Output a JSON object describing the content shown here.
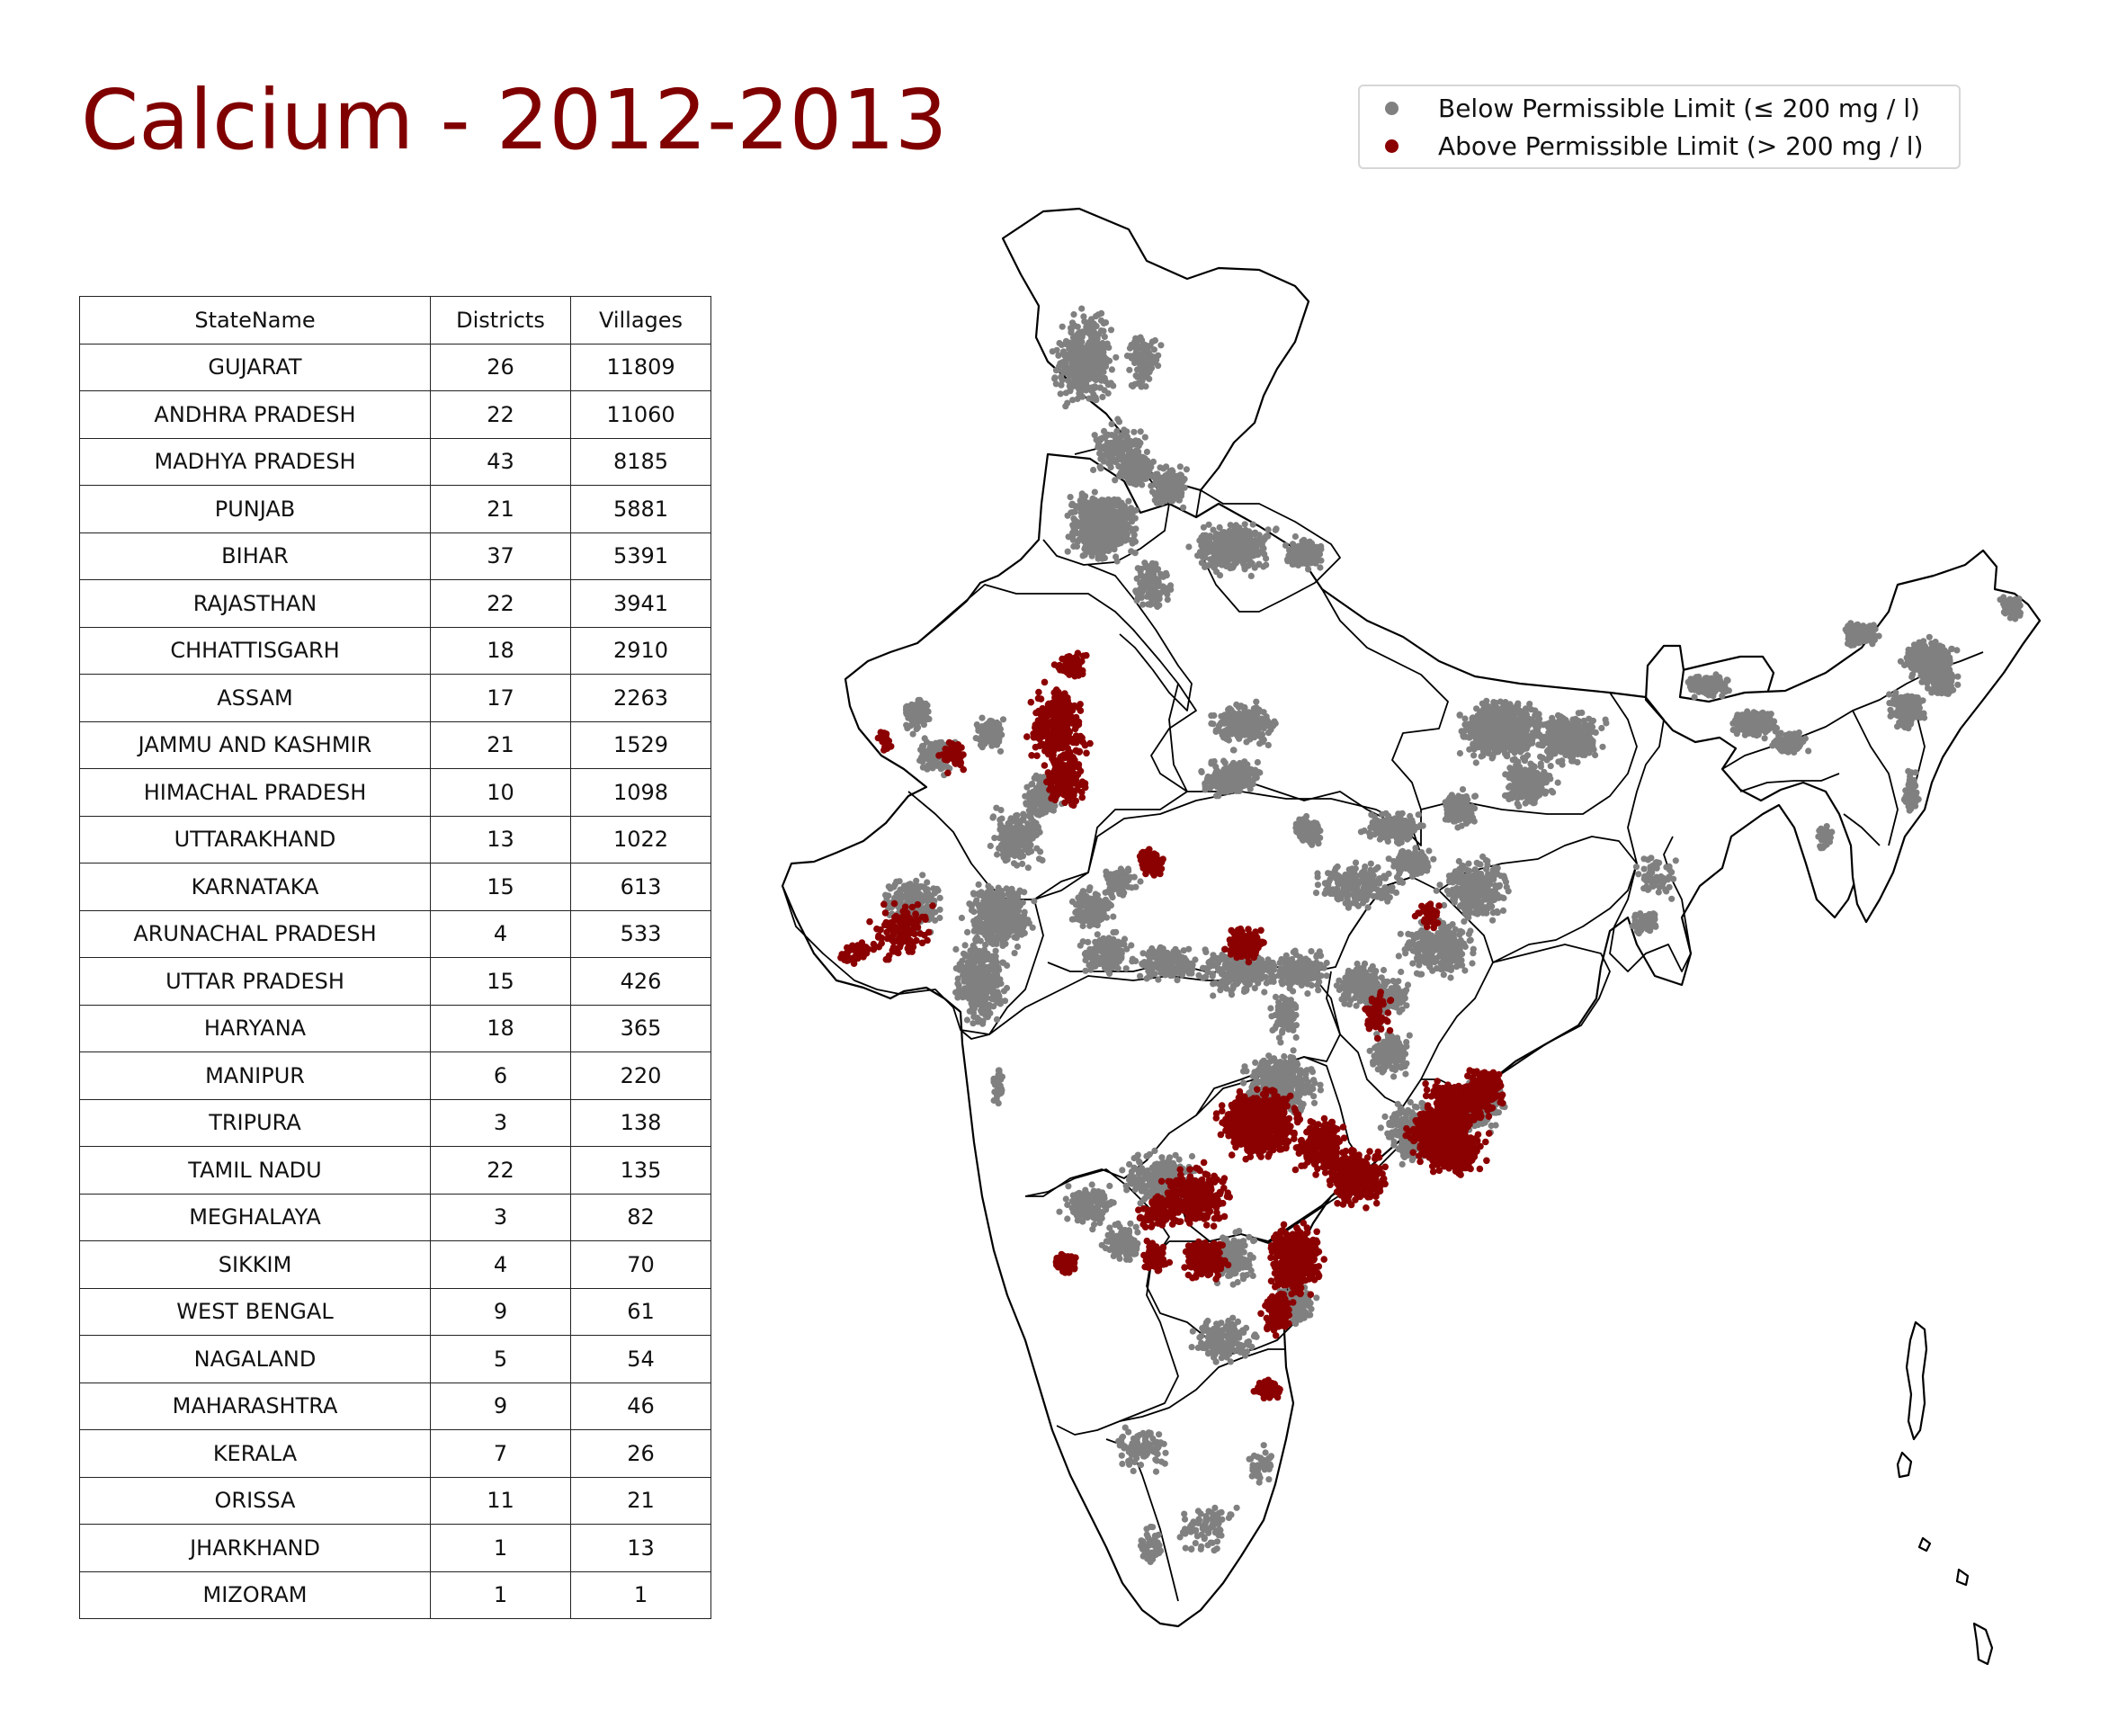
{
  "title": "Calcium - 2012-2013",
  "legend": {
    "below": {
      "label": "Below Permissible Limit (≤ 200 mg / l)",
      "color": "#808080"
    },
    "above": {
      "label": "Above Permissible Limit (> 200 mg / l)",
      "color": "#8b0000"
    }
  },
  "table": {
    "headers": [
      "StateName",
      "Districts",
      "Villages"
    ],
    "rows": [
      [
        "GUJARAT",
        "26",
        "11809"
      ],
      [
        "ANDHRA PRADESH",
        "22",
        "11060"
      ],
      [
        "MADHYA PRADESH",
        "43",
        "8185"
      ],
      [
        "PUNJAB",
        "21",
        "5881"
      ],
      [
        "BIHAR",
        "37",
        "5391"
      ],
      [
        "RAJASTHAN",
        "22",
        "3941"
      ],
      [
        "CHHATTISGARH",
        "18",
        "2910"
      ],
      [
        "ASSAM",
        "17",
        "2263"
      ],
      [
        "JAMMU AND KASHMIR",
        "21",
        "1529"
      ],
      [
        "HIMACHAL PRADESH",
        "10",
        "1098"
      ],
      [
        "UTTARAKHAND",
        "13",
        "1022"
      ],
      [
        "KARNATAKA",
        "15",
        "613"
      ],
      [
        "ARUNACHAL PRADESH",
        "4",
        "533"
      ],
      [
        "UTTAR PRADESH",
        "15",
        "426"
      ],
      [
        "HARYANA",
        "18",
        "365"
      ],
      [
        "MANIPUR",
        "6",
        "220"
      ],
      [
        "TRIPURA",
        "3",
        "138"
      ],
      [
        "TAMIL NADU",
        "22",
        "135"
      ],
      [
        "MEGHALAYA",
        "3",
        "82"
      ],
      [
        "SIKKIM",
        "4",
        "70"
      ],
      [
        "WEST BENGAL",
        "9",
        "61"
      ],
      [
        "NAGALAND",
        "5",
        "54"
      ],
      [
        "MAHARASHTRA",
        "9",
        "46"
      ],
      [
        "KERALA",
        "7",
        "26"
      ],
      [
        "ORISSA",
        "11",
        "21"
      ],
      [
        "JHARKHAND",
        "1",
        "13"
      ],
      [
        "MIZORAM",
        "1",
        "1"
      ]
    ]
  }
}
